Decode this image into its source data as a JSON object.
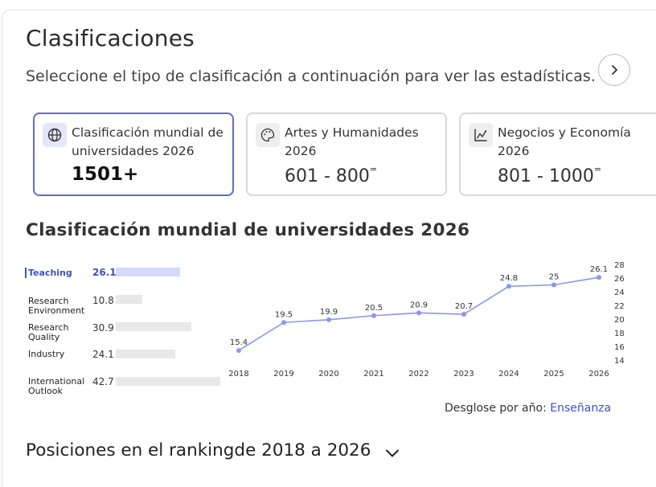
{
  "header": {
    "title": "Clasificaciones",
    "subtitle": "Seleccione el tipo de clasificación a continuación para ver las estadísticas."
  },
  "cards": [
    {
      "label_line1": "Clasificación mundial de",
      "label_line2": "universidades 2026",
      "value": "1501+",
      "icon": "globe-icon"
    },
    {
      "label_line1": "Artes y Humanidades 2026",
      "value": "601 - 800",
      "value_suffix": "=",
      "icon": "palette-icon"
    },
    {
      "label_line1": "Negocios y Economía 2026",
      "value": "801 - 1000",
      "value_suffix": "=",
      "icon": "chart-icon"
    }
  ],
  "section_title": "Clasificación mundial de universidades 2026",
  "metrics": [
    {
      "label_line1": "Teaching",
      "label_line2": "",
      "value": "26.1",
      "fraction": 0.261
    },
    {
      "label_line1": "Research",
      "label_line2": "Environment",
      "value": "10.8",
      "fraction": 0.108
    },
    {
      "label_line1": "Research",
      "label_line2": "Quality",
      "value": "30.9",
      "fraction": 0.309
    },
    {
      "label_line1": "Industry",
      "label_line2": "",
      "value": "24.1",
      "fraction": 0.241
    },
    {
      "label_line1": "International",
      "label_line2": "Outlook",
      "value": "42.7",
      "fraction": 0.427
    }
  ],
  "chart_data": {
    "type": "line",
    "x": [
      "2018",
      "2019",
      "2020",
      "2021",
      "2022",
      "2023",
      "2024",
      "2025",
      "2026"
    ],
    "series": [
      {
        "values": [
          15.4,
          19.5,
          19.9,
          20.5,
          20.9,
          20.7,
          24.8,
          25,
          26.1
        ]
      }
    ],
    "value_labels": [
      "15.4",
      "19.5",
      "19.9",
      "20.5",
      "20.9",
      "20.7",
      "24.8",
      "25",
      "26.1"
    ],
    "y_ticks": [
      "28",
      "26",
      "24",
      "22",
      "20",
      "18",
      "16",
      "14"
    ],
    "ylim": [
      14,
      28
    ],
    "y_axis_side": "right",
    "grid": false,
    "color": "#8c95ee"
  },
  "breakdown": {
    "label": "Desglose por año:",
    "link": "Enseñanza"
  },
  "positions_title": "Posiciones en el rankingde 2018 a 2026"
}
